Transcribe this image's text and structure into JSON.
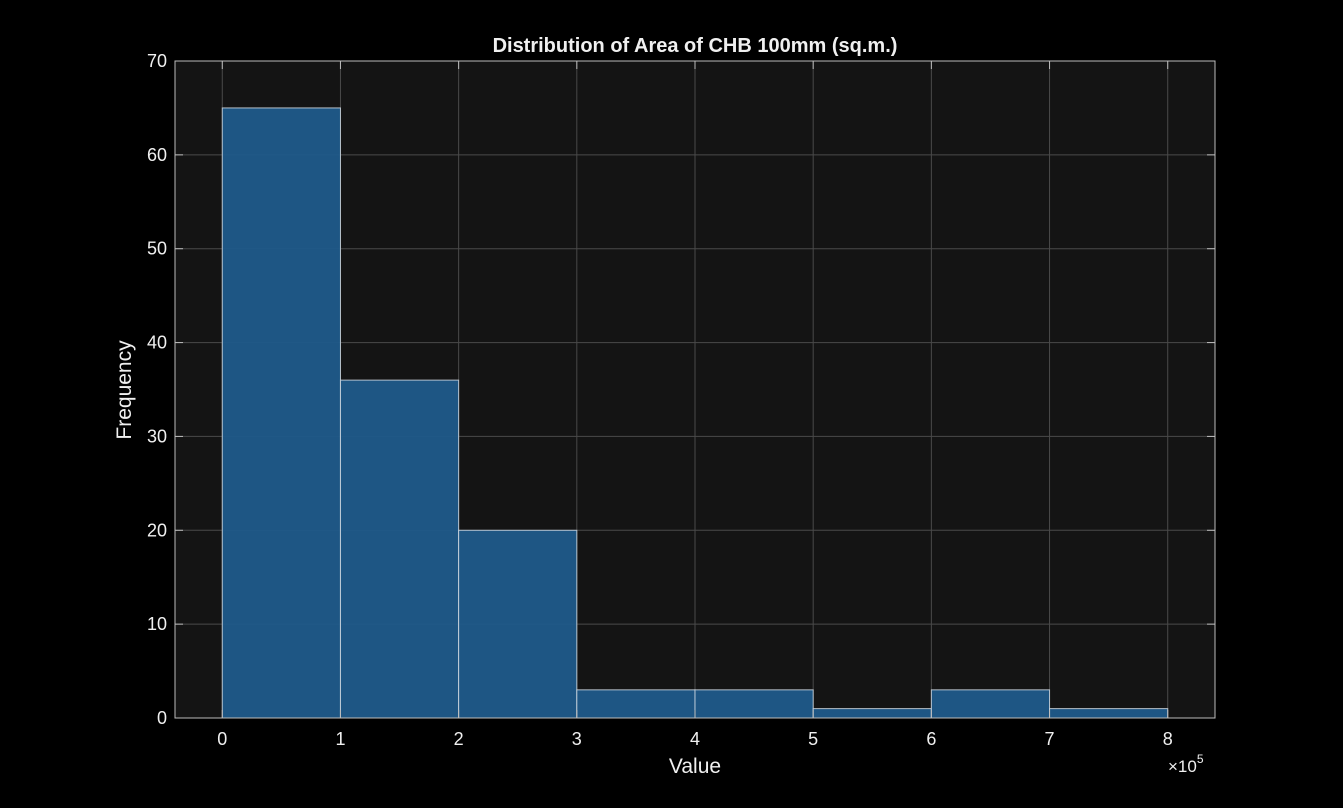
{
  "chart_data": {
    "type": "bar",
    "subtype": "histogram",
    "title": "Distribution of Area of CHB 100mm (sq.m.)",
    "xlabel": "Value",
    "ylabel": "Frequency",
    "x_multiplier_label": "×10",
    "x_multiplier_exponent": "5",
    "bin_edges": [
      0,
      100000,
      200000,
      300000,
      400000,
      500000,
      600000,
      700000,
      800000
    ],
    "values": [
      65,
      36,
      20,
      3,
      3,
      1,
      3,
      1
    ],
    "xlim": [
      -40000,
      840000
    ],
    "ylim": [
      0,
      70
    ],
    "xticks": [
      0,
      100000,
      200000,
      300000,
      400000,
      500000,
      600000,
      700000,
      800000
    ],
    "xtick_labels": [
      "0",
      "1",
      "2",
      "3",
      "4",
      "5",
      "6",
      "7",
      "8"
    ],
    "yticks": [
      0,
      10,
      20,
      30,
      40,
      50,
      60,
      70
    ],
    "ytick_labels": [
      "0",
      "10",
      "20",
      "30",
      "40",
      "50",
      "60",
      "70"
    ],
    "grid": true,
    "colors": {
      "figure_background": "#000000",
      "axes_background": "#141414",
      "bar_fill": "#1f5a8a",
      "bar_edge": "#d0d8e0",
      "grid": "#4a4a4a",
      "axes_edge": "#bdbdbd",
      "text": "#f0f0f0"
    }
  }
}
